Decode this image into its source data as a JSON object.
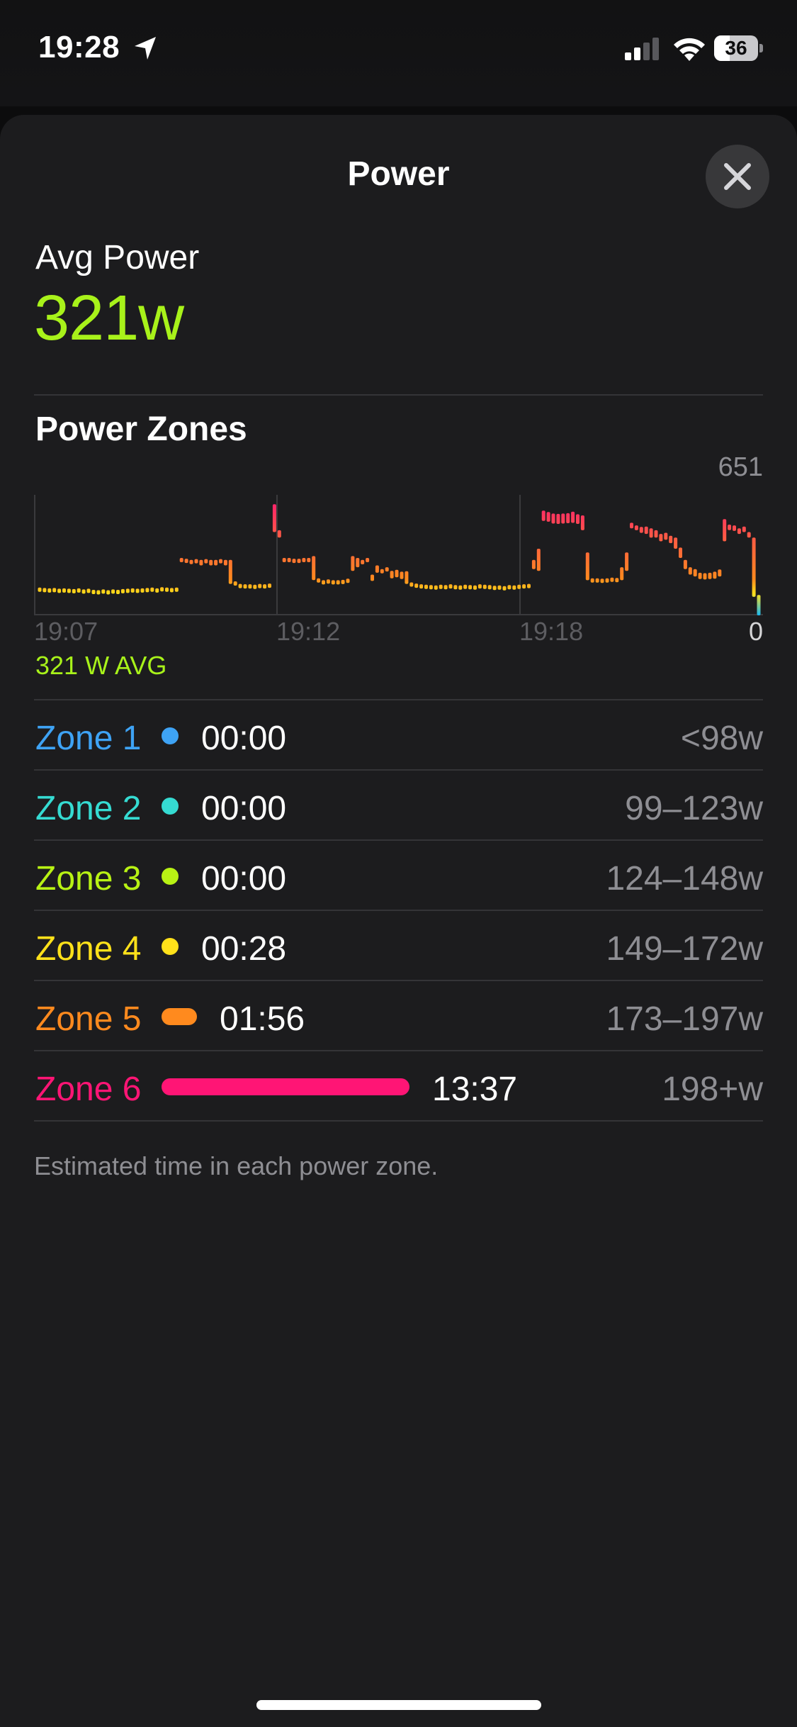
{
  "status": {
    "time": "19:28",
    "battery": "36",
    "battery_level": 0.36
  },
  "header": {
    "title": "Power"
  },
  "summary": {
    "avg_label": "Avg Power",
    "avg_value": "321w",
    "accent_color": "#a8f21a"
  },
  "zones_section": {
    "title": "Power Zones",
    "chart_avg_label": "321 W AVG",
    "footnote": "Estimated time in each power zone.",
    "zones": [
      {
        "label": "Zone 1",
        "time": "00:00",
        "range": "<98w",
        "color": "#3ea3f5",
        "seconds": 0
      },
      {
        "label": "Zone 2",
        "time": "00:00",
        "range": "99–123w",
        "color": "#35dbd2",
        "seconds": 0
      },
      {
        "label": "Zone 3",
        "time": "00:00",
        "range": "124–148w",
        "color": "#b8f214",
        "seconds": 0
      },
      {
        "label": "Zone 4",
        "time": "00:28",
        "range": "149–172w",
        "color": "#ffe11a",
        "seconds": 28
      },
      {
        "label": "Zone 5",
        "time": "01:56",
        "range": "173–197w",
        "color": "#ff8a1e",
        "seconds": 116
      },
      {
        "label": "Zone 6",
        "time": "13:37",
        "range": "198+w",
        "color": "#ff1575",
        "seconds": 817
      }
    ]
  },
  "chart_data": {
    "type": "bar",
    "y_max_label": "651",
    "y_min_label": "0",
    "ylim": [
      0,
      651
    ],
    "x_ticks": [
      "19:07",
      "19:12",
      "19:18"
    ],
    "grid": "vertical lines at x ticks",
    "values": [
      [
        150,
        140
      ],
      [
        148,
        138
      ],
      [
        146,
        136
      ],
      [
        148,
        138
      ],
      [
        144,
        134
      ],
      [
        146,
        136
      ],
      [
        144,
        134
      ],
      [
        142,
        132
      ],
      [
        146,
        136
      ],
      [
        140,
        130
      ],
      [
        144,
        134
      ],
      [
        138,
        128
      ],
      [
        136,
        126
      ],
      [
        140,
        130
      ],
      [
        136,
        126
      ],
      [
        140,
        130
      ],
      [
        138,
        128
      ],
      [
        142,
        132
      ],
      [
        144,
        134
      ],
      [
        146,
        136
      ],
      [
        144,
        134
      ],
      [
        146,
        136
      ],
      [
        148,
        138
      ],
      [
        150,
        140
      ],
      [
        146,
        136
      ],
      [
        152,
        142
      ],
      [
        150,
        140
      ],
      [
        148,
        138
      ],
      [
        150,
        140
      ],
      [
        310,
        296
      ],
      [
        306,
        292
      ],
      [
        300,
        284
      ],
      [
        304,
        290
      ],
      [
        300,
        270
      ],
      [
        304,
        290
      ],
      [
        300,
        270
      ],
      [
        300,
        270
      ],
      [
        304,
        290
      ],
      [
        300,
        270
      ],
      [
        300,
        170
      ],
      [
        184,
        164
      ],
      [
        170,
        156
      ],
      [
        168,
        154
      ],
      [
        168,
        154
      ],
      [
        166,
        152
      ],
      [
        170,
        156
      ],
      [
        168,
        154
      ],
      [
        172,
        156
      ],
      [
        600,
        450
      ],
      [
        460,
        420
      ],
      [
        310,
        296
      ],
      [
        310,
        296
      ],
      [
        306,
        292
      ],
      [
        306,
        292
      ],
      [
        310,
        296
      ],
      [
        310,
        296
      ],
      [
        320,
        190
      ],
      [
        200,
        182
      ],
      [
        190,
        176
      ],
      [
        194,
        178
      ],
      [
        190,
        176
      ],
      [
        190,
        176
      ],
      [
        192,
        178
      ],
      [
        198,
        180
      ],
      [
        320,
        240
      ],
      [
        310,
        260
      ],
      [
        300,
        276
      ],
      [
        310,
        290
      ],
      [
        220,
        186
      ],
      [
        270,
        230
      ],
      [
        250,
        230
      ],
      [
        260,
        240
      ],
      [
        240,
        200
      ],
      [
        246,
        206
      ],
      [
        236,
        196
      ],
      [
        238,
        170
      ],
      [
        178,
        162
      ],
      [
        172,
        156
      ],
      [
        168,
        154
      ],
      [
        166,
        152
      ],
      [
        164,
        150
      ],
      [
        162,
        148
      ],
      [
        166,
        152
      ],
      [
        164,
        150
      ],
      [
        168,
        154
      ],
      [
        164,
        150
      ],
      [
        162,
        148
      ],
      [
        166,
        152
      ],
      [
        164,
        150
      ],
      [
        162,
        148
      ],
      [
        168,
        154
      ],
      [
        166,
        152
      ],
      [
        164,
        150
      ],
      [
        160,
        146
      ],
      [
        162,
        148
      ],
      [
        158,
        144
      ],
      [
        164,
        150
      ],
      [
        162,
        148
      ],
      [
        166,
        152
      ],
      [
        168,
        154
      ],
      [
        170,
        150
      ],
      [
        300,
        250
      ],
      [
        360,
        240
      ],
      [
        566,
        510
      ],
      [
        558,
        506
      ],
      [
        550,
        496
      ],
      [
        548,
        494
      ],
      [
        550,
        496
      ],
      [
        552,
        498
      ],
      [
        560,
        500
      ],
      [
        546,
        494
      ],
      [
        540,
        460
      ],
      [
        340,
        190
      ],
      [
        200,
        180
      ],
      [
        200,
        180
      ],
      [
        198,
        180
      ],
      [
        200,
        180
      ],
      [
        204,
        184
      ],
      [
        202,
        182
      ],
      [
        260,
        190
      ],
      [
        340,
        240
      ],
      [
        500,
        470
      ],
      [
        486,
        460
      ],
      [
        478,
        446
      ],
      [
        480,
        440
      ],
      [
        470,
        420
      ],
      [
        460,
        420
      ],
      [
        440,
        400
      ],
      [
        446,
        408
      ],
      [
        430,
        390
      ],
      [
        420,
        360
      ],
      [
        366,
        310
      ],
      [
        300,
        250
      ],
      [
        260,
        220
      ],
      [
        250,
        210
      ],
      [
        230,
        196
      ],
      [
        228,
        194
      ],
      [
        230,
        196
      ],
      [
        236,
        198
      ],
      [
        248,
        210
      ],
      [
        520,
        400
      ],
      [
        490,
        460
      ],
      [
        486,
        456
      ],
      [
        470,
        440
      ],
      [
        480,
        450
      ],
      [
        450,
        420
      ],
      [
        420,
        100
      ],
      [
        110,
        0
      ]
    ],
    "series": [
      {
        "name": "",
        "color_scale": [
          "#ff8a1e",
          "#ff1575"
        ]
      }
    ]
  }
}
